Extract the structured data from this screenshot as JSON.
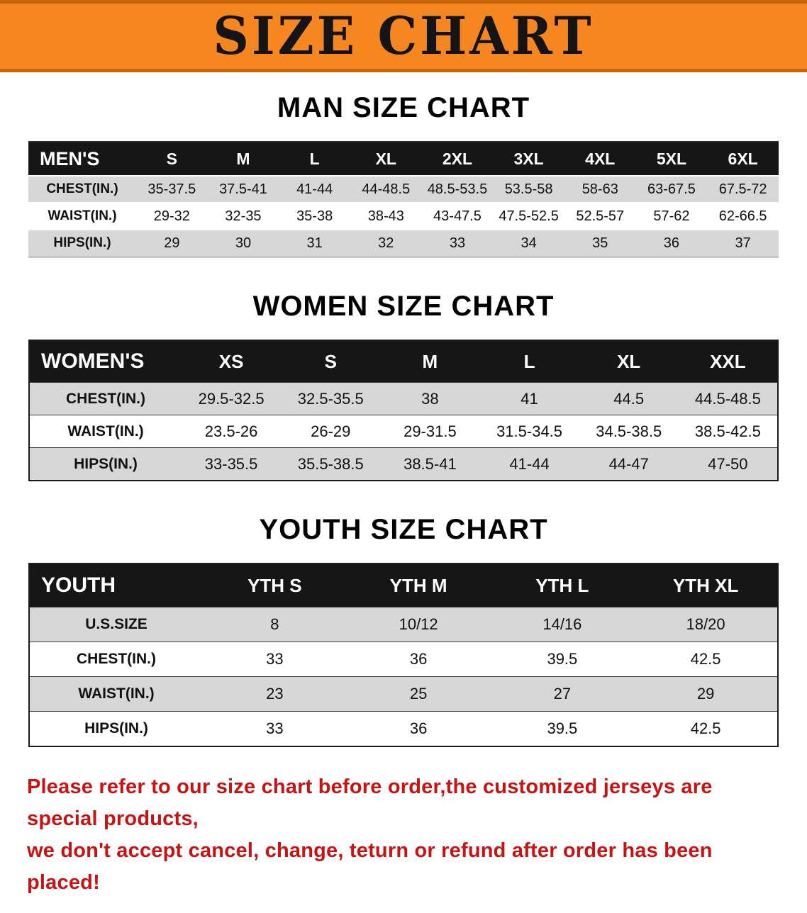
{
  "banner": {
    "title": "SIZE CHART",
    "bg_color": "#f6861f",
    "border_color": "#c9660a",
    "text_color": "#141414"
  },
  "colors": {
    "header_row_bg": "#161616",
    "alt_row_bg": "#d7d7d7",
    "footer_text": "#c91313"
  },
  "chart_data": [
    {
      "type": "table",
      "name": "mens",
      "title": "MAN SIZE CHART",
      "columns": [
        "MEN'S",
        "S",
        "M",
        "L",
        "XL",
        "2XL",
        "3XL",
        "4XL",
        "5XL",
        "6XL"
      ],
      "rows": [
        [
          "CHEST(IN.)",
          "35-37.5",
          "37.5-41",
          "41-44",
          "44-48.5",
          "48.5-53.5",
          "53.5-58",
          "58-63",
          "63-67.5",
          "67.5-72"
        ],
        [
          "WAIST(IN.)",
          "29-32",
          "32-35",
          "35-38",
          "38-43",
          "43-47.5",
          "47.5-52.5",
          "52.5-57",
          "57-62",
          "62-66.5"
        ],
        [
          "HIPS(IN.)",
          "29",
          "30",
          "31",
          "32",
          "33",
          "34",
          "35",
          "36",
          "37"
        ]
      ]
    },
    {
      "type": "table",
      "name": "womens",
      "title": "WOMEN SIZE CHART",
      "columns": [
        "WOMEN'S",
        "XS",
        "S",
        "M",
        "L",
        "XL",
        "XXL"
      ],
      "rows": [
        [
          "CHEST(IN.)",
          "29.5-32.5",
          "32.5-35.5",
          "38",
          "41",
          "44.5",
          "44.5-48.5"
        ],
        [
          "WAIST(IN.)",
          "23.5-26",
          "26-29",
          "29-31.5",
          "31.5-34.5",
          "34.5-38.5",
          "38.5-42.5"
        ],
        [
          "HIPS(IN.)",
          "33-35.5",
          "35.5-38.5",
          "38.5-41",
          "41-44",
          "44-47",
          "47-50"
        ]
      ]
    },
    {
      "type": "table",
      "name": "youth",
      "title": "YOUTH SIZE CHART",
      "columns": [
        "YOUTH",
        "YTH S",
        "YTH M",
        "YTH L",
        "YTH XL"
      ],
      "rows": [
        [
          "U.S.SIZE",
          "8",
          "10/12",
          "14/16",
          "18/20"
        ],
        [
          "CHEST(IN.)",
          "33",
          "36",
          "39.5",
          "42.5"
        ],
        [
          "WAIST(IN.)",
          "23",
          "25",
          "27",
          "29"
        ],
        [
          "HIPS(IN.)",
          "33",
          "36",
          "39.5",
          "42.5"
        ]
      ]
    }
  ],
  "footer": {
    "lines": [
      "Please refer to our size chart before order,the customized jerseys are special products,",
      "we don't accept cancel, change, teturn or refund after order has been placed!"
    ]
  }
}
